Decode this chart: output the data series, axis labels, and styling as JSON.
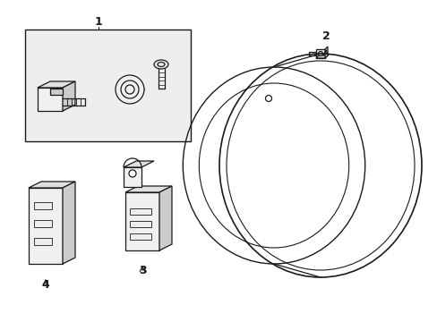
{
  "background_color": "#ffffff",
  "fig_width": 4.89,
  "fig_height": 3.6,
  "dpi": 100,
  "line_color": "#1a1a1a",
  "gray_fill": "#f0f0f0",
  "mid_gray": "#e0e0e0",
  "dark_gray": "#cccccc",
  "box_bg": "#eeeeee",
  "label_1": "1",
  "label_2": "2",
  "label_3": "3",
  "label_4": "4"
}
